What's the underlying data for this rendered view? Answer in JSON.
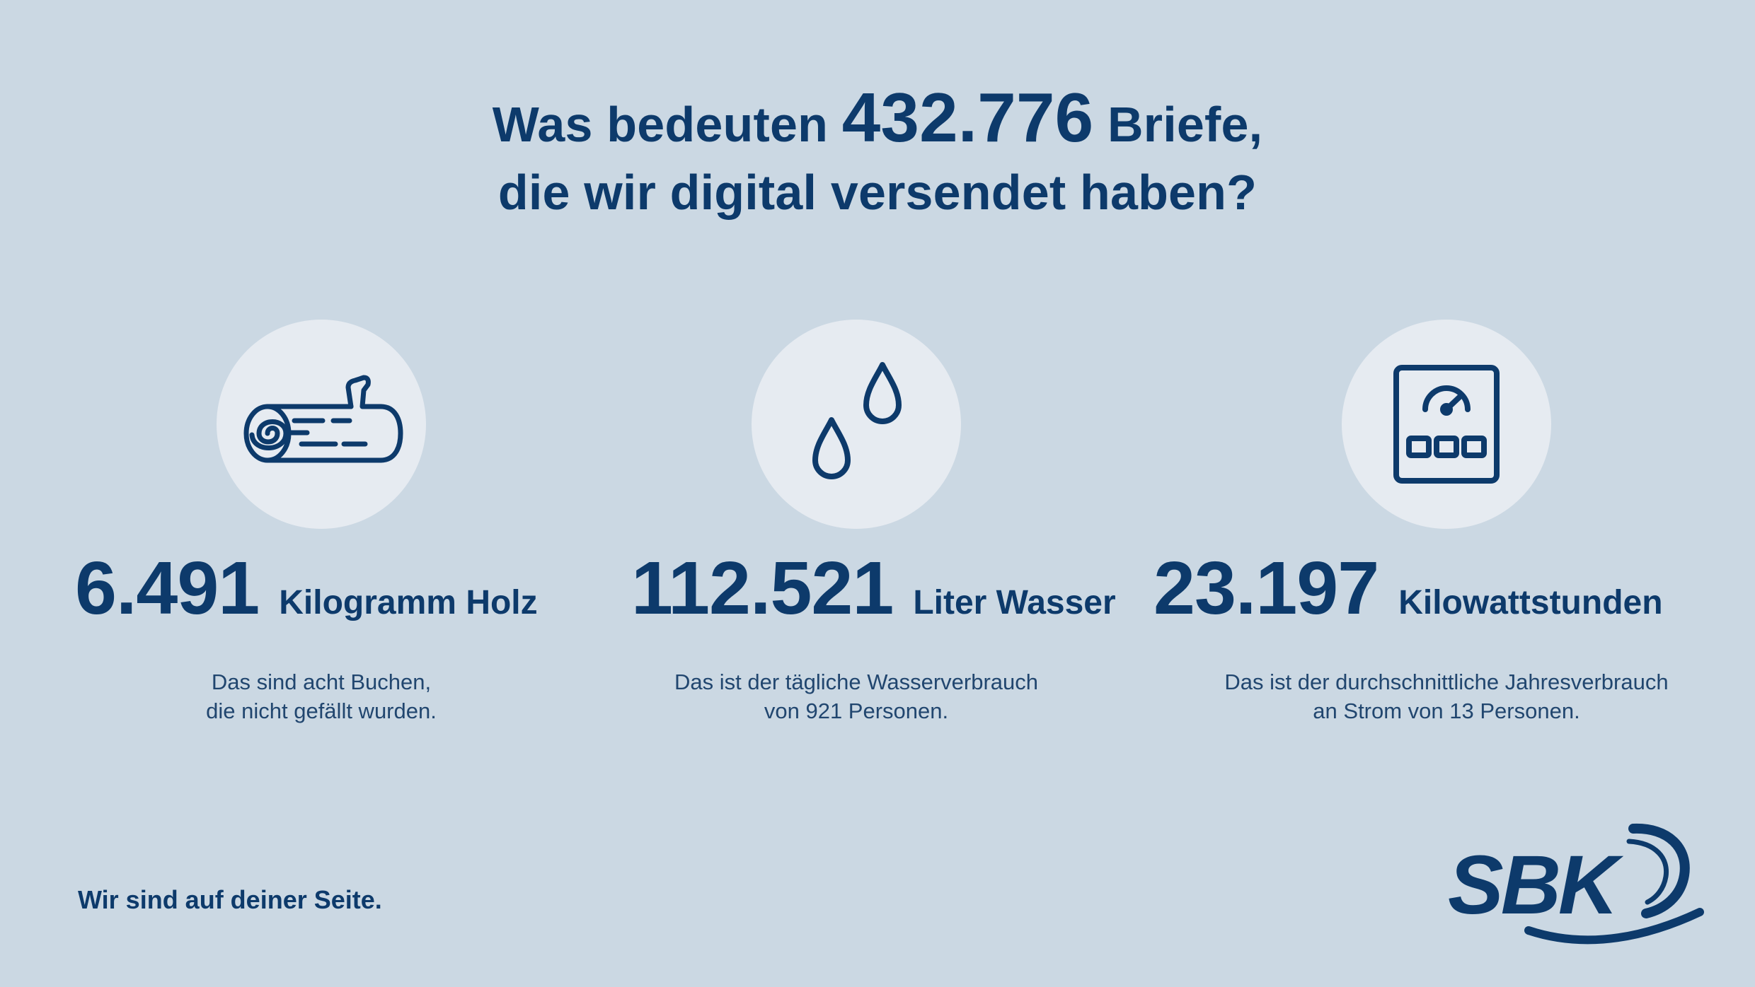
{
  "headline": {
    "line1_before": "Was bedeuten",
    "line1_number": "432.776",
    "line1_after": "Briefe,",
    "line2": "die wir digital versendet haben?"
  },
  "stats": [
    {
      "icon": "wood-log-icon",
      "number": "6.491",
      "unit": "Kilogramm Holz",
      "desc_line1": "Das sind acht Buchen,",
      "desc_line2": "die nicht gefällt wurden."
    },
    {
      "icon": "water-drops-icon",
      "number": "112.521",
      "unit": "Liter Wasser",
      "desc_line1": "Das ist der tägliche Wasserverbrauch",
      "desc_line2": "von 921 Personen."
    },
    {
      "icon": "electricity-meter-icon",
      "number": "23.197",
      "unit": "Kilowattstunden",
      "desc_line1": "Das ist der durchschnittliche Jahresverbrauch",
      "desc_line2": "an Strom von 13 Personen."
    }
  ],
  "tagline": "Wir sind auf deiner Seite.",
  "logo": {
    "text": "SBK"
  },
  "colors": {
    "background": "#cbd8e3",
    "circle": "#e6ebf1",
    "brand_blue": "#0d3a6b"
  }
}
